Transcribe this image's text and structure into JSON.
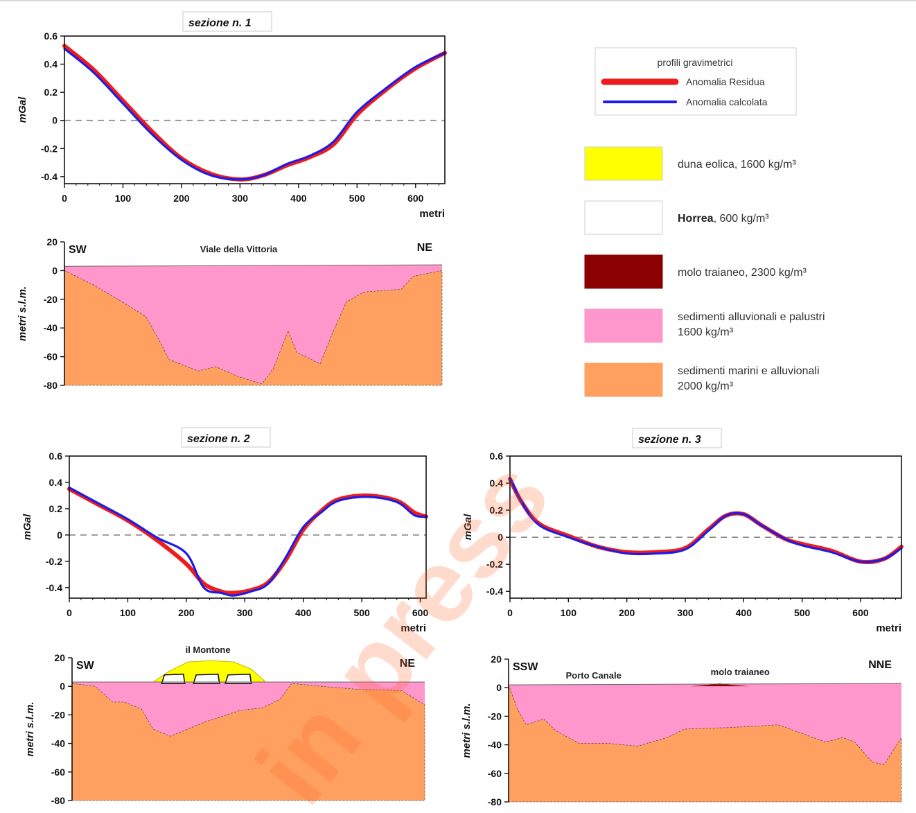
{
  "legend": {
    "title": "profili gravimetrici",
    "lines": [
      {
        "label": "Anomalia Residua",
        "color": "#ee1c1c"
      },
      {
        "label": "Anomalia calcolata",
        "color": "#1c1ce8"
      }
    ],
    "materials": [
      {
        "label": "duna eolica, 1600 kg/m³",
        "bold": "",
        "color": "#ffff00",
        "border": "#ccc"
      },
      {
        "label": ", 600 kg/m³",
        "bold": "Horrea",
        "color": "#ffffff",
        "border": "#ccc"
      },
      {
        "label": "molo traianeo, 2300 kg/m³",
        "bold": "",
        "color": "#8b0000",
        "border": "#8b0000"
      },
      {
        "label": "sedimenti alluvionali e palustri",
        "label2": "1600 kg/m³",
        "bold": "",
        "color": "#ff96cc",
        "border": "#ff96cc"
      },
      {
        "label": "sedimenti marini e alluvionali",
        "label2": "2000 kg/m³",
        "bold": "",
        "color": "#ffa060",
        "border": "#ffa060"
      }
    ]
  },
  "watermark": "in press",
  "chart_data": [
    {
      "type": "line",
      "title": "sezione n. 1",
      "xlabel": "metri",
      "ylabel": "mGal",
      "xlim": [
        0,
        650
      ],
      "ylim": [
        -0.45,
        0.6
      ],
      "xticks": [
        0,
        100,
        200,
        300,
        400,
        500,
        600
      ],
      "yticks": [
        0.6,
        0.4,
        0.2,
        0,
        -0.2,
        -0.4
      ],
      "series": [
        {
          "name": "Anomalia Residua",
          "color": "#ee1c1c",
          "x": [
            0,
            50,
            100,
            150,
            200,
            250,
            300,
            340,
            380,
            420,
            460,
            500,
            550,
            600,
            650
          ],
          "y": [
            0.53,
            0.36,
            0.14,
            -0.08,
            -0.27,
            -0.38,
            -0.42,
            -0.39,
            -0.32,
            -0.26,
            -0.17,
            0.04,
            0.22,
            0.37,
            0.48
          ]
        },
        {
          "name": "Anomalia calcolata",
          "color": "#1c1ce8",
          "x": [
            0,
            50,
            100,
            150,
            200,
            250,
            300,
            340,
            380,
            420,
            460,
            500,
            550,
            600,
            650
          ],
          "y": [
            0.51,
            0.34,
            0.12,
            -0.1,
            -0.28,
            -0.39,
            -0.42,
            -0.39,
            -0.31,
            -0.25,
            -0.15,
            0.06,
            0.23,
            0.38,
            0.48
          ]
        }
      ]
    },
    {
      "type": "area",
      "title": "",
      "ylabel": "metri s.l.m.",
      "xlim": [
        0,
        650
      ],
      "ylim": [
        -80,
        20
      ],
      "yticks": [
        20,
        0,
        -20,
        -40,
        -60,
        -80
      ],
      "labels": {
        "left": "SW",
        "right": "NE",
        "center": "Viale della Vittoria"
      },
      "layers": [
        {
          "name": "sedimenti alluvionali e palustri",
          "color": "#ff96cc",
          "top": [
            [
              0,
              3
            ],
            [
              650,
              4
            ]
          ]
        },
        {
          "name": "sedimenti marini e alluvionali",
          "color": "#ffa060",
          "top": [
            [
              0,
              0
            ],
            [
              50,
              -10
            ],
            [
              100,
              -22
            ],
            [
              140,
              -32
            ],
            [
              165,
              -50
            ],
            [
              180,
              -62
            ],
            [
              230,
              -70
            ],
            [
              260,
              -67
            ],
            [
              300,
              -74
            ],
            [
              340,
              -79
            ],
            [
              360,
              -68
            ],
            [
              385,
              -42
            ],
            [
              400,
              -57
            ],
            [
              440,
              -65
            ],
            [
              460,
              -45
            ],
            [
              485,
              -22
            ],
            [
              515,
              -15
            ],
            [
              580,
              -13
            ],
            [
              600,
              -4
            ],
            [
              650,
              0
            ]
          ]
        }
      ]
    },
    {
      "type": "line",
      "title": "sezione n. 2",
      "xlabel": "metri",
      "ylabel": "mGal",
      "xlim": [
        0,
        610
      ],
      "ylim": [
        -0.48,
        0.6
      ],
      "xticks": [
        0,
        100,
        200,
        300,
        400,
        500,
        600
      ],
      "yticks": [
        0.6,
        0.4,
        0.2,
        0,
        -0.2,
        -0.4
      ],
      "series": [
        {
          "name": "Anomalia Residua",
          "color": "#ee1c1c",
          "x": [
            0,
            50,
            100,
            150,
            200,
            230,
            260,
            280,
            310,
            340,
            370,
            400,
            430,
            460,
            510,
            560,
            590,
            610
          ],
          "y": [
            0.35,
            0.23,
            0.11,
            -0.04,
            -0.22,
            -0.37,
            -0.43,
            -0.44,
            -0.42,
            -0.36,
            -0.19,
            0.04,
            0.18,
            0.27,
            0.3,
            0.26,
            0.17,
            0.14
          ]
        },
        {
          "name": "Anomalia calcolata",
          "color": "#1c1ce8",
          "x": [
            0,
            50,
            100,
            150,
            200,
            230,
            260,
            280,
            310,
            340,
            370,
            400,
            430,
            460,
            510,
            560,
            590,
            610
          ],
          "y": [
            0.36,
            0.24,
            0.12,
            -0.02,
            -0.14,
            -0.4,
            -0.44,
            -0.46,
            -0.43,
            -0.37,
            -0.17,
            0.06,
            0.17,
            0.26,
            0.29,
            0.25,
            0.15,
            0.14
          ]
        }
      ]
    },
    {
      "type": "area",
      "title": "",
      "ylabel": "metri s.l.m.",
      "xlim": [
        0,
        610
      ],
      "ylim": [
        -80,
        20
      ],
      "yticks": [
        20,
        0,
        -20,
        -40,
        -60,
        -80
      ],
      "labels": {
        "left": "SW",
        "right": "NE",
        "center": "il Montone"
      },
      "layers": [
        {
          "name": "sedimenti alluvionali e palustri",
          "color": "#ff96cc",
          "top": [
            [
              0,
              3
            ],
            [
              610,
              3
            ]
          ]
        },
        {
          "name": "sedimenti marini e alluvionali",
          "color": "#ffa060",
          "top": [
            [
              0,
              2
            ],
            [
              40,
              0
            ],
            [
              70,
              -11
            ],
            [
              90,
              -11
            ],
            [
              120,
              -16
            ],
            [
              140,
              -30
            ],
            [
              170,
              -35
            ],
            [
              230,
              -25
            ],
            [
              290,
              -17
            ],
            [
              330,
              -15
            ],
            [
              360,
              -9
            ],
            [
              380,
              2
            ],
            [
              430,
              0
            ],
            [
              490,
              -2
            ],
            [
              570,
              -3
            ],
            [
              610,
              -13
            ]
          ]
        },
        {
          "name": "duna eolica, 1600 kg/m³",
          "color": "#ffff00",
          "top": [
            [
              140,
              3
            ],
            [
              170,
              11
            ],
            [
              200,
              17
            ],
            [
              240,
              18
            ],
            [
              280,
              17
            ],
            [
              310,
              12
            ],
            [
              335,
              3
            ]
          ]
        }
      ]
    },
    {
      "type": "line",
      "title": "sezione n. 3",
      "xlabel": "metri",
      "ylabel": "mGal",
      "xlim": [
        0,
        670
      ],
      "ylim": [
        -0.45,
        0.6
      ],
      "xticks": [
        0,
        100,
        200,
        300,
        400,
        500,
        600
      ],
      "yticks": [
        0.6,
        0.4,
        0.2,
        0,
        -0.2,
        -0.4
      ],
      "series": [
        {
          "name": "Anomalia Residua",
          "color": "#ee1c1c",
          "x": [
            0,
            20,
            50,
            100,
            150,
            200,
            250,
            300,
            340,
            370,
            400,
            430,
            470,
            500,
            550,
            600,
            640,
            670
          ],
          "y": [
            0.43,
            0.26,
            0.1,
            0.01,
            -0.07,
            -0.11,
            -0.11,
            -0.08,
            0.06,
            0.16,
            0.17,
            0.09,
            -0.01,
            -0.05,
            -0.1,
            -0.18,
            -0.16,
            -0.07
          ]
        },
        {
          "name": "Anomalia calcolata",
          "color": "#1c1ce8",
          "x": [
            0,
            20,
            50,
            100,
            150,
            200,
            250,
            300,
            340,
            370,
            400,
            430,
            470,
            500,
            550,
            600,
            640,
            670
          ],
          "y": [
            0.44,
            0.26,
            0.09,
            0.0,
            -0.07,
            -0.12,
            -0.12,
            -0.09,
            0.05,
            0.16,
            0.17,
            0.09,
            -0.01,
            -0.06,
            -0.11,
            -0.18,
            -0.16,
            -0.08
          ]
        }
      ]
    },
    {
      "type": "area",
      "title": "",
      "ylabel": "metri s.l.m.",
      "xlim": [
        0,
        670
      ],
      "ylim": [
        -80,
        20
      ],
      "yticks": [
        20,
        0,
        -20,
        -40,
        -60,
        -80
      ],
      "labels": {
        "left": "SSW",
        "right": "NNE",
        "center": "Porto Canale",
        "center2": "molo traianeo"
      },
      "layers": [
        {
          "name": "sedimenti alluvionali e palustri",
          "color": "#ff96cc",
          "top": [
            [
              0,
              2
            ],
            [
              670,
              3
            ]
          ]
        },
        {
          "name": "sedimenti marini e alluvionali",
          "color": "#ffa060",
          "top": [
            [
              0,
              2
            ],
            [
              15,
              -15
            ],
            [
              30,
              -26
            ],
            [
              60,
              -22
            ],
            [
              80,
              -30
            ],
            [
              120,
              -39
            ],
            [
              170,
              -39
            ],
            [
              220,
              -41
            ],
            [
              270,
              -35
            ],
            [
              300,
              -29
            ],
            [
              370,
              -28
            ],
            [
              420,
              -27
            ],
            [
              460,
              -26
            ],
            [
              500,
              -32
            ],
            [
              540,
              -38
            ],
            [
              570,
              -35
            ],
            [
              590,
              -38
            ],
            [
              620,
              -52
            ],
            [
              640,
              -54
            ],
            [
              670,
              -35
            ]
          ]
        },
        {
          "name": "molo traianeo, 2300 kg/m³",
          "color": "#8b0000",
          "top": [
            [
              310,
              1
            ],
            [
              340,
              2
            ],
            [
              360,
              3
            ],
            [
              380,
              2
            ],
            [
              410,
              1
            ]
          ]
        }
      ]
    }
  ]
}
